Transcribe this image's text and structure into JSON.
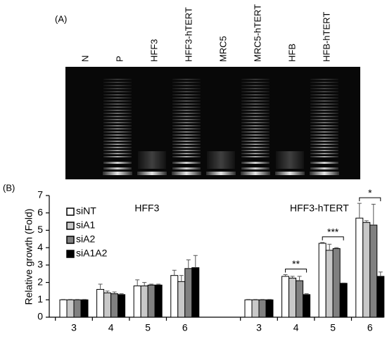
{
  "panel_a": {
    "label": "(A)",
    "lanes": [
      "N",
      "P",
      "HFF3",
      "HFF3-hTERT",
      "MRC5",
      "MRC5-hTERT",
      "HFB",
      "HFB-hTERT"
    ]
  },
  "chart_data": {
    "type": "bar",
    "panel_label": "(B)",
    "ylabel": "Relative growth (Fold)",
    "categories": [
      "3",
      "4",
      "5",
      "6",
      null,
      "3",
      "4",
      "5",
      "6"
    ],
    "group_labels": [
      "HFF3",
      "HFF3-hTERT"
    ],
    "ylim": [
      0,
      7
    ],
    "yticks": [
      0,
      1,
      2,
      3,
      4,
      5,
      6,
      7
    ],
    "series": [
      {
        "name": "siNT",
        "color": "#ffffff",
        "values": [
          1.0,
          1.6,
          1.8,
          2.4,
          null,
          1.0,
          2.35,
          4.25,
          5.7
        ],
        "errors": [
          0.02,
          0.3,
          0.35,
          0.3,
          null,
          0.02,
          0.1,
          0.05,
          0.85
        ]
      },
      {
        "name": "siA1",
        "color": "#c8c8c8",
        "values": [
          1.0,
          1.4,
          1.8,
          2.05,
          null,
          1.0,
          2.25,
          3.85,
          5.45
        ],
        "errors": [
          0.02,
          0.1,
          0.2,
          0.35,
          null,
          0.02,
          0.1,
          0.35,
          0.1
        ]
      },
      {
        "name": "siA2",
        "color": "#808080",
        "values": [
          1.0,
          1.35,
          1.85,
          2.8,
          null,
          1.0,
          2.1,
          3.95,
          5.3
        ],
        "errors": [
          0.02,
          0.1,
          0.05,
          0.5,
          null,
          0.02,
          0.25,
          0.05,
          1.2
        ]
      },
      {
        "name": "siA1A2",
        "color": "#000000",
        "values": [
          1.0,
          1.3,
          1.85,
          2.85,
          null,
          1.0,
          1.3,
          1.95,
          2.35
        ],
        "errors": [
          0.02,
          0.05,
          0.05,
          0.7,
          null,
          0.02,
          0.05,
          0.02,
          0.25
        ]
      }
    ],
    "significance": [
      null,
      null,
      null,
      null,
      null,
      null,
      "**",
      "***",
      "*"
    ]
  }
}
